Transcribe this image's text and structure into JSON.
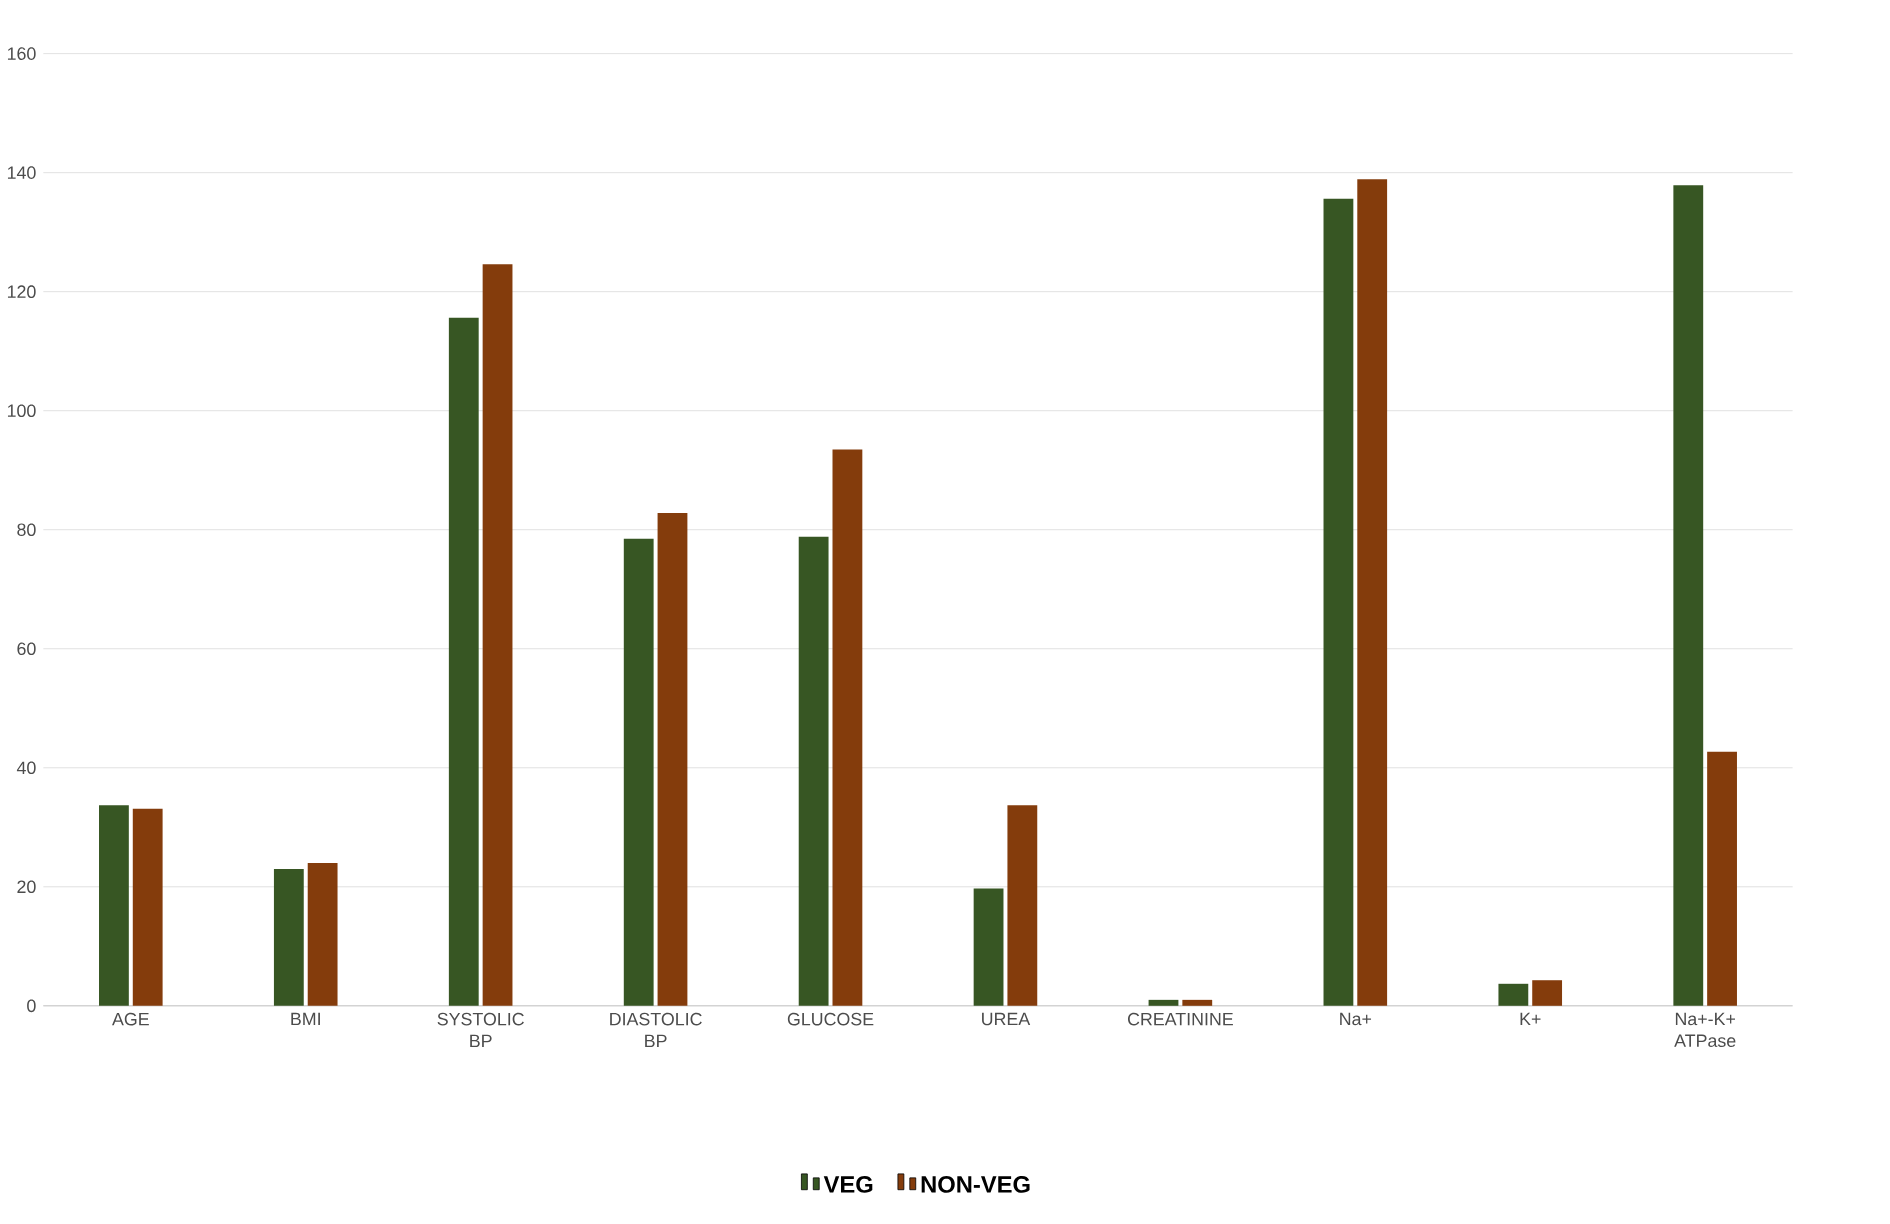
{
  "chart_data": {
    "type": "bar",
    "categories": [
      "AGE",
      "BMI",
      "SYSTOLIC BP",
      "DIASTOLIC BP",
      "GLUCOSE",
      "UREA",
      "CREATININE",
      "Na+",
      "K+",
      "Na+-K+ ATPase"
    ],
    "series": [
      {
        "name": "VEG",
        "color": "#375623",
        "values": [
          33.7,
          23.0,
          115.6,
          78.5,
          78.8,
          19.7,
          1.0,
          135.6,
          3.7,
          137.9
        ]
      },
      {
        "name": "NON-VEG",
        "color": "#843c0c",
        "values": [
          33.1,
          24.0,
          124.6,
          82.8,
          93.5,
          33.7,
          1.0,
          138.9,
          4.3,
          42.7
        ]
      }
    ],
    "ylim": [
      0,
      160
    ],
    "yticks": [
      0,
      20,
      40,
      60,
      80,
      100,
      120,
      140,
      160
    ],
    "grid": "y",
    "legend": "bottom"
  }
}
